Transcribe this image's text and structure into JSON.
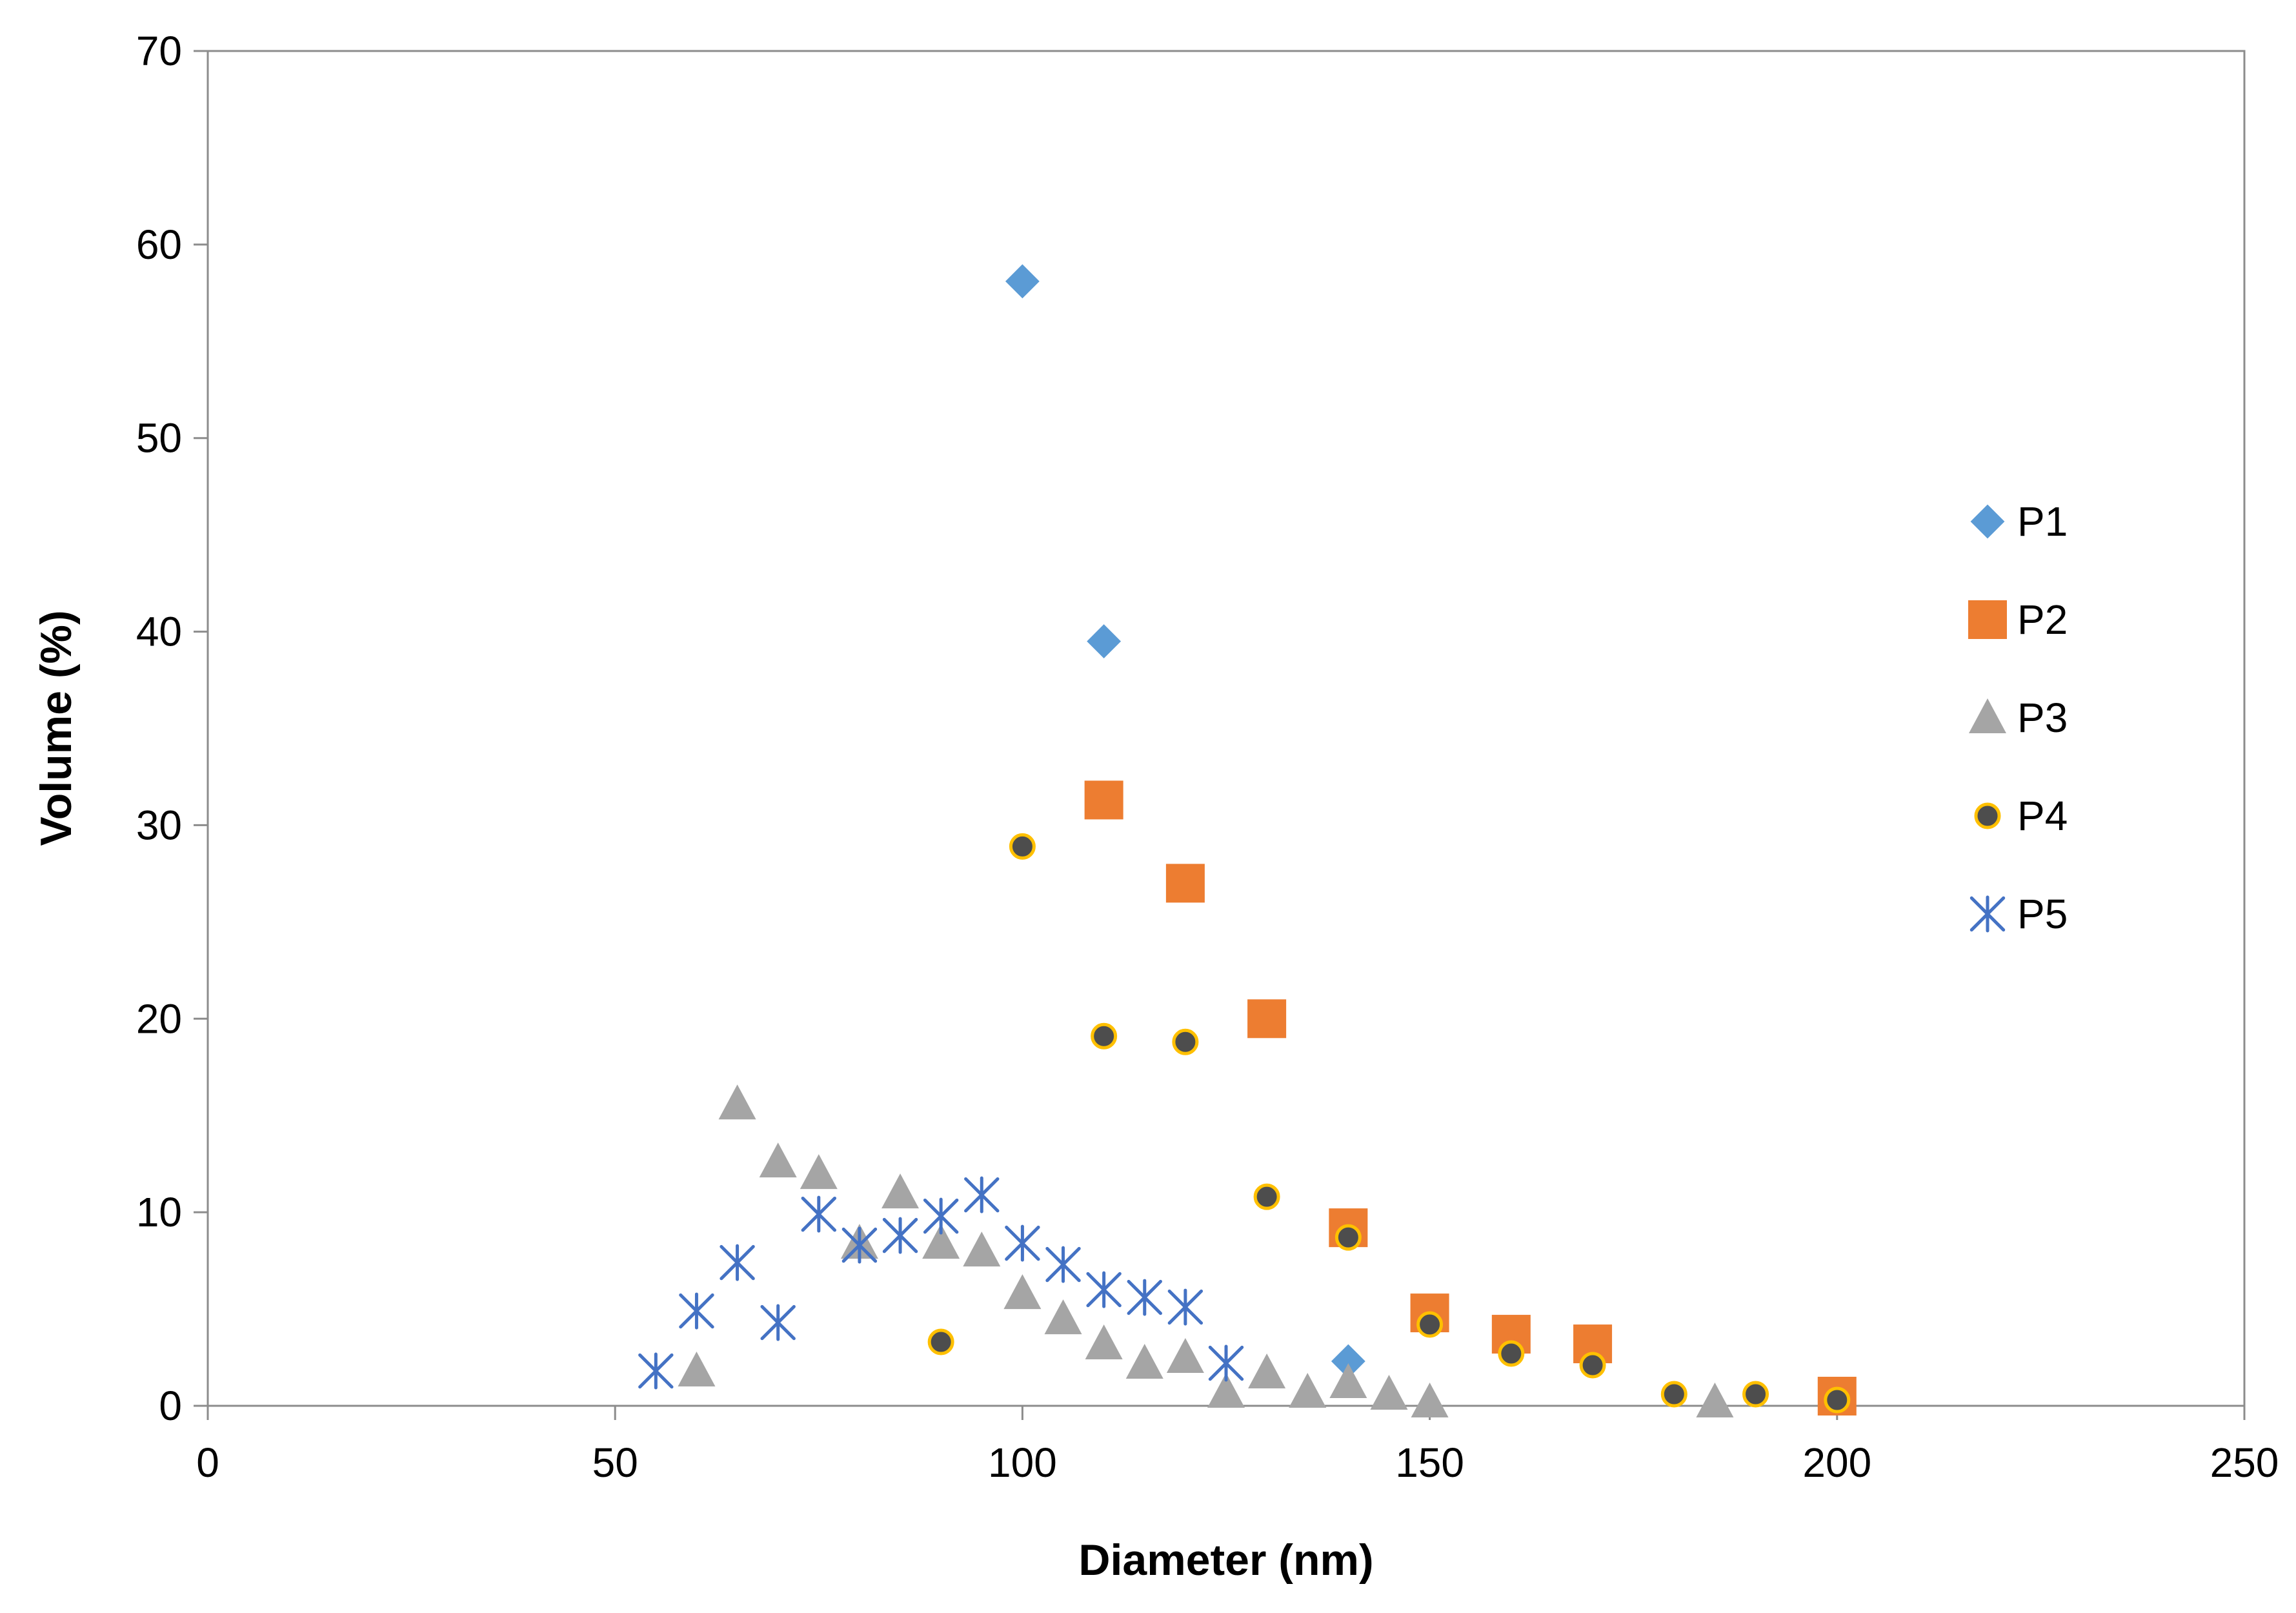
{
  "chart_data": {
    "type": "scatter",
    "title": "",
    "xlabel": "Diameter (nm)",
    "ylabel": "Volume (%)",
    "xlim": [
      0,
      250
    ],
    "ylim": [
      0,
      70
    ],
    "xticks": [
      0,
      50,
      100,
      150,
      200,
      250
    ],
    "yticks": [
      0,
      10,
      20,
      30,
      40,
      50,
      60,
      70
    ],
    "grid": false,
    "legend_position": "right",
    "series": [
      {
        "name": "P1",
        "marker": "diamond",
        "color": "#5B9BD5",
        "points": [
          [
            100,
            58.1
          ],
          [
            110,
            39.5
          ],
          [
            140,
            2.3
          ]
        ]
      },
      {
        "name": "P2",
        "marker": "square",
        "color": "#ED7D31",
        "points": [
          [
            110,
            31.3
          ],
          [
            120,
            27.0
          ],
          [
            130,
            20.0
          ],
          [
            140,
            9.2
          ],
          [
            150,
            4.8
          ],
          [
            160,
            3.7
          ],
          [
            170,
            3.2
          ],
          [
            200,
            0.5
          ]
        ]
      },
      {
        "name": "P3",
        "marker": "triangle",
        "color": "#A5A5A5",
        "points": [
          [
            60,
            1.8
          ],
          [
            65,
            15.6
          ],
          [
            70,
            12.6
          ],
          [
            75,
            12.0
          ],
          [
            80,
            8.4
          ],
          [
            85,
            11.0
          ],
          [
            90,
            8.4
          ],
          [
            95,
            8.0
          ],
          [
            100,
            5.8
          ],
          [
            105,
            4.5
          ],
          [
            110,
            3.2
          ],
          [
            115,
            2.2
          ],
          [
            120,
            2.5
          ],
          [
            125,
            0.7
          ],
          [
            130,
            1.7
          ],
          [
            135,
            0.7
          ],
          [
            140,
            1.2
          ],
          [
            145,
            0.6
          ],
          [
            150,
            0.2
          ],
          [
            185,
            0.2
          ]
        ]
      },
      {
        "name": "P4",
        "marker": "circle",
        "color": "#4D4D4D",
        "edge_color": "#FFC000",
        "points": [
          [
            90,
            3.3
          ],
          [
            100,
            28.9
          ],
          [
            110,
            19.1
          ],
          [
            120,
            18.8
          ],
          [
            130,
            10.8
          ],
          [
            140,
            8.7
          ],
          [
            150,
            4.2
          ],
          [
            160,
            2.7
          ],
          [
            170,
            2.1
          ],
          [
            180,
            0.6
          ],
          [
            190,
            0.6
          ],
          [
            200,
            0.3
          ]
        ]
      },
      {
        "name": "P5",
        "marker": "asterisk",
        "color": "#4472C4",
        "points": [
          [
            55,
            1.8
          ],
          [
            60,
            4.9
          ],
          [
            65,
            7.4
          ],
          [
            70,
            4.3
          ],
          [
            75,
            9.9
          ],
          [
            80,
            8.3
          ],
          [
            85,
            8.8
          ],
          [
            90,
            9.8
          ],
          [
            95,
            10.9
          ],
          [
            100,
            8.4
          ],
          [
            105,
            7.3
          ],
          [
            110,
            6.0
          ],
          [
            115,
            5.6
          ],
          [
            120,
            5.1
          ],
          [
            125,
            2.2
          ]
        ]
      }
    ]
  }
}
